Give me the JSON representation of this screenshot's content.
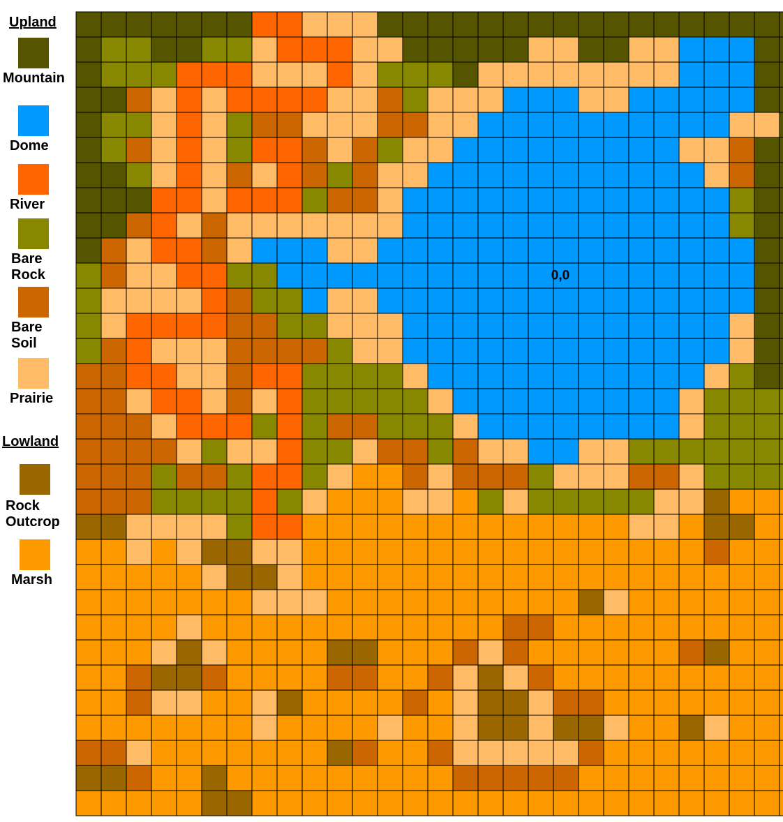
{
  "legend": {
    "upland_heading": "Upland",
    "lowland_heading": "Lowland",
    "items": [
      {
        "key": "M",
        "label": "Mountain",
        "color": "#555500"
      },
      {
        "key": "D",
        "label": "Dome",
        "color": "#0099ff"
      },
      {
        "key": "R",
        "label": "River",
        "color": "#ff6600"
      },
      {
        "key": "B",
        "label": "Bare\nRock",
        "color": "#888800"
      },
      {
        "key": "S",
        "label": "Bare\nSoil",
        "color": "#cc6600"
      },
      {
        "key": "P",
        "label": "Prairie",
        "color": "#ffbb66"
      },
      {
        "key": "O",
        "label": "Rock\nOutcrop",
        "color": "#996600"
      },
      {
        "key": "H",
        "label": "Marsh",
        "color": "#ff9900"
      }
    ]
  },
  "map": {
    "origin_label": "0,0",
    "origin_cell": {
      "row": 10,
      "col": 19
    },
    "rows": [
      "MMMMMMMRRPPPMMMMMMMMMMMMMMMMM",
      "MBBMMBBPRRRPPMMMMMPPMMPPDDDMM",
      "MBBBRRRPPPRPBBBMPPPPPPPPDDDMM",
      "MMSPRPRRRRPPSBPPPDDDPPDDDDDMM",
      "MBBPRPBSSPPPSSPPDDDDDDDDDDPPM",
      "MBSPRPBRRSPSBPPDDDDDDDDDPPSMM",
      "MMBPRPSPRSBSPPDDDDDDDDDDDPSMM",
      "MMMRRPRRRBSSPDDDDDDDDDDDDDBMM",
      "MMSRPSPPPPPPPDDDDDDDDDDDDDBMM",
      "MSPRRSPDDDPPDDDDDDDDDDDDDDDMM",
      "BSPPRRBBDDDDDDDDDDDDDDDDDDDMM",
      "BPPPPRSBBDPPDDDDDDDDDDDDDDDMM",
      "BPRRRRSSBBPPPDDDDDDDDDDDDDPMM",
      "BSRPPPSSSSBPPDDDDDDDDDDDDDPMM",
      "SSRRPPSRRBBBBPDDDDDDDDDDDPBMM",
      "SSPRRPSPRBBBBBPDDDDDDDDDPBBBB",
      "SSSPRRRBRBSSBBBPDDDDDDDDPBBBB",
      "SSSSPBPPRBBPSSBSPPDDPPBBBBBBB",
      "SSSBSSBRRBPHHSPSSSBPPPSSPBBBB",
      "SSSBBBBRBPHHHPPHBPBBBBBPPOHHH",
      "OOPPPPBRRHHHHHHHHHHHHHPPHOOHH",
      "HHPHPOOPPHHHHHHHHHHHHHHHHSHHH",
      "HHHHHPOOPHHHHHHHHHHHHHHHHHHHH",
      "HHHHHHHPPPHHHHHHHHHHOPHHHHHHH",
      "HHHHPHHHHHHHHHHHHSSHHHHHHHHHH",
      "HHHPOPHHHHOOHHHSPSHHHHHHSOHHH",
      "HHSOOSHHHHSSHHSPOPSHHHHHHHHHH",
      "HHSPPHHPOHHHHSHPOOPSSHHHHHHHH",
      "HHHHHHHPHHHHPHHPOOPOOPHHOPHHH",
      "SSPHHHHHHHOSHHSPPPPPSHHHHHHHH",
      "OOSHHOHHHHHHHHHSSSSSHHHHHHHHH",
      "HHHHHOOHHHHHHHHHHHHHHHHHHHHHH"
    ]
  }
}
